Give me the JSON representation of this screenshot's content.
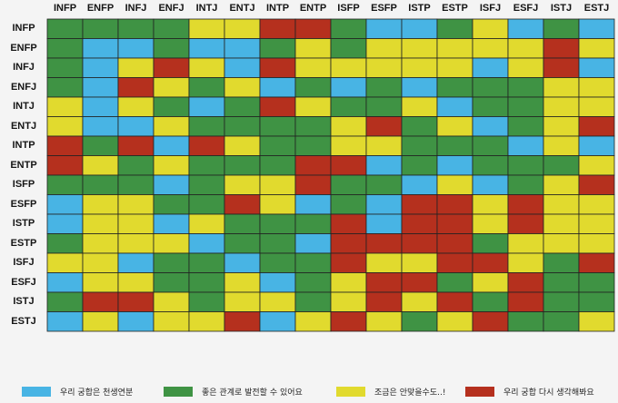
{
  "chart_data": {
    "type": "heatmap",
    "x_labels": [
      "INFP",
      "ENFP",
      "INFJ",
      "ENFJ",
      "INTJ",
      "ENTJ",
      "INTP",
      "ENTP",
      "ISFP",
      "ESFP",
      "ISTP",
      "ESTP",
      "ISFJ",
      "ESFJ",
      "ISTJ",
      "ESTJ"
    ],
    "y_labels": [
      "INFP",
      "ENFP",
      "INFJ",
      "ENFJ",
      "INTJ",
      "ENTJ",
      "INTP",
      "ENTP",
      "ISFP",
      "ESFP",
      "ISTP",
      "ESTP",
      "ISFJ",
      "ESFJ",
      "ISTJ",
      "ESTJ"
    ],
    "categories": [
      {
        "key": "B",
        "label": "우리 궁합은 천생연분",
        "color": "#48b4e4"
      },
      {
        "key": "G",
        "label": "좋은 관계로 발전할 수 있어요",
        "color": "#3f9344"
      },
      {
        "key": "Y",
        "label": "조금은 안맞을수도..!",
        "color": "#e1da2e"
      },
      {
        "key": "R",
        "label": "우리 궁합 다시 생각해봐요",
        "color": "#b5301e"
      }
    ],
    "grid": [
      [
        "G",
        "G",
        "G",
        "G",
        "Y",
        "Y",
        "R",
        "R",
        "G",
        "B",
        "B",
        "G",
        "Y",
        "B",
        "G",
        "B"
      ],
      [
        "G",
        "B",
        "B",
        "G",
        "B",
        "B",
        "G",
        "Y",
        "G",
        "Y",
        "Y",
        "Y",
        "Y",
        "Y",
        "R",
        "Y"
      ],
      [
        "G",
        "B",
        "Y",
        "R",
        "Y",
        "B",
        "R",
        "Y",
        "Y",
        "Y",
        "Y",
        "Y",
        "B",
        "Y",
        "R",
        "B"
      ],
      [
        "G",
        "B",
        "R",
        "Y",
        "G",
        "Y",
        "B",
        "G",
        "B",
        "G",
        "B",
        "G",
        "G",
        "G",
        "Y",
        "Y"
      ],
      [
        "Y",
        "B",
        "Y",
        "G",
        "B",
        "G",
        "R",
        "Y",
        "G",
        "G",
        "Y",
        "B",
        "G",
        "G",
        "Y",
        "Y"
      ],
      [
        "Y",
        "B",
        "B",
        "Y",
        "G",
        "G",
        "G",
        "G",
        "Y",
        "R",
        "G",
        "Y",
        "B",
        "G",
        "Y",
        "R"
      ],
      [
        "R",
        "G",
        "R",
        "B",
        "R",
        "Y",
        "G",
        "G",
        "Y",
        "Y",
        "G",
        "G",
        "G",
        "B",
        "Y",
        "B"
      ],
      [
        "R",
        "Y",
        "G",
        "Y",
        "G",
        "G",
        "G",
        "R",
        "R",
        "B",
        "G",
        "B",
        "G",
        "G",
        "G",
        "Y"
      ],
      [
        "G",
        "G",
        "G",
        "B",
        "G",
        "Y",
        "Y",
        "R",
        "G",
        "G",
        "B",
        "Y",
        "B",
        "G",
        "Y",
        "R"
      ],
      [
        "B",
        "Y",
        "Y",
        "G",
        "G",
        "R",
        "Y",
        "B",
        "G",
        "B",
        "R",
        "R",
        "Y",
        "R",
        "Y",
        "Y"
      ],
      [
        "B",
        "Y",
        "Y",
        "B",
        "Y",
        "G",
        "G",
        "G",
        "R",
        "B",
        "R",
        "R",
        "Y",
        "R",
        "Y",
        "Y"
      ],
      [
        "G",
        "Y",
        "Y",
        "Y",
        "B",
        "G",
        "G",
        "B",
        "R",
        "R",
        "R",
        "R",
        "G",
        "Y",
        "Y",
        "Y"
      ],
      [
        "Y",
        "Y",
        "B",
        "G",
        "G",
        "B",
        "G",
        "G",
        "R",
        "Y",
        "Y",
        "R",
        "R",
        "Y",
        "G",
        "R"
      ],
      [
        "B",
        "Y",
        "Y",
        "G",
        "G",
        "Y",
        "B",
        "G",
        "Y",
        "R",
        "R",
        "G",
        "Y",
        "R",
        "G",
        "G"
      ],
      [
        "G",
        "R",
        "R",
        "Y",
        "G",
        "Y",
        "Y",
        "G",
        "Y",
        "R",
        "Y",
        "R",
        "G",
        "R",
        "G",
        "G"
      ],
      [
        "B",
        "Y",
        "B",
        "Y",
        "Y",
        "R",
        "B",
        "Y",
        "R",
        "Y",
        "G",
        "Y",
        "R",
        "G",
        "G",
        "Y"
      ]
    ],
    "legend_position": "bottom",
    "grid_lines": true
  }
}
